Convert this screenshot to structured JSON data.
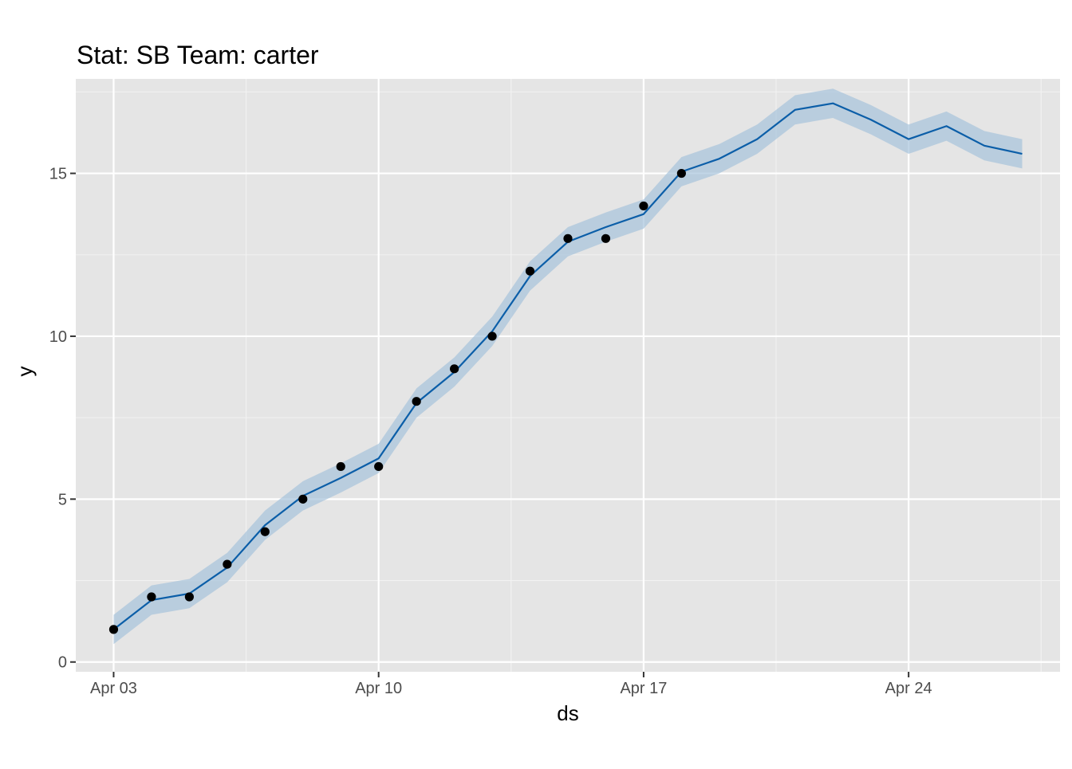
{
  "chart_data": {
    "type": "line",
    "title": "Stat: SB Team: carter",
    "xlabel": "ds",
    "ylabel": "y",
    "x_ticks": [
      "Apr 03",
      "Apr 10",
      "Apr 17",
      "Apr 24"
    ],
    "y_ticks": [
      "0",
      "5",
      "10",
      "15"
    ],
    "xlim": [
      "2023-04-02",
      "2023-04-28"
    ],
    "ylim": [
      -0.3,
      17.9
    ],
    "grid": true,
    "legend": "none",
    "colors": {
      "panel_background": "#e5e5e5",
      "grid_major": "#ffffff",
      "grid_minor": "#f2f2f2",
      "forecast_line": "#0b5ea8",
      "interval_band": "#a6c3dc",
      "points": "#000000",
      "tick_text": "#4d4d4d",
      "tick_mark": "#333333"
    },
    "series": [
      {
        "kind": "observed_points",
        "x": [
          "2023-04-03",
          "2023-04-04",
          "2023-04-05",
          "2023-04-06",
          "2023-04-07",
          "2023-04-08",
          "2023-04-09",
          "2023-04-10",
          "2023-04-11",
          "2023-04-12",
          "2023-04-13",
          "2023-04-14",
          "2023-04-15",
          "2023-04-16",
          "2023-04-17",
          "2023-04-18"
        ],
        "values": [
          1,
          2,
          2,
          3,
          4,
          5,
          6,
          6,
          8,
          9,
          10,
          12,
          13,
          13,
          14,
          15
        ]
      },
      {
        "kind": "forecast_line",
        "x": [
          "2023-04-03",
          "2023-04-04",
          "2023-04-05",
          "2023-04-06",
          "2023-04-07",
          "2023-04-08",
          "2023-04-09",
          "2023-04-10",
          "2023-04-11",
          "2023-04-12",
          "2023-04-13",
          "2023-04-14",
          "2023-04-15",
          "2023-04-16",
          "2023-04-17",
          "2023-04-18",
          "2023-04-19",
          "2023-04-20",
          "2023-04-21",
          "2023-04-22",
          "2023-04-23",
          "2023-04-24",
          "2023-04-25",
          "2023-04-26",
          "2023-04-27"
        ],
        "values": [
          1.0,
          1.9,
          2.1,
          2.9,
          4.2,
          5.1,
          5.65,
          6.25,
          7.95,
          8.9,
          10.15,
          11.85,
          12.9,
          13.35,
          13.75,
          15.05,
          15.45,
          16.05,
          16.95,
          17.15,
          16.65,
          16.05,
          16.45,
          15.85,
          15.6
        ]
      },
      {
        "kind": "interval_band",
        "x": [
          "2023-04-03",
          "2023-04-04",
          "2023-04-05",
          "2023-04-06",
          "2023-04-07",
          "2023-04-08",
          "2023-04-09",
          "2023-04-10",
          "2023-04-11",
          "2023-04-12",
          "2023-04-13",
          "2023-04-14",
          "2023-04-15",
          "2023-04-16",
          "2023-04-17",
          "2023-04-18",
          "2023-04-19",
          "2023-04-20",
          "2023-04-21",
          "2023-04-22",
          "2023-04-23",
          "2023-04-24",
          "2023-04-25",
          "2023-04-26",
          "2023-04-27"
        ],
        "upper": [
          1.45,
          2.35,
          2.55,
          3.35,
          4.65,
          5.55,
          6.1,
          6.7,
          8.4,
          9.35,
          10.6,
          12.3,
          13.35,
          13.8,
          14.2,
          15.5,
          15.9,
          16.5,
          17.4,
          17.6,
          17.1,
          16.5,
          16.9,
          16.3,
          16.05
        ],
        "lower": [
          0.55,
          1.45,
          1.65,
          2.45,
          3.75,
          4.65,
          5.2,
          5.8,
          7.5,
          8.45,
          9.7,
          11.4,
          12.45,
          12.9,
          13.3,
          14.6,
          15.0,
          15.6,
          16.5,
          16.7,
          16.2,
          15.6,
          16.0,
          15.4,
          15.15
        ]
      }
    ]
  }
}
